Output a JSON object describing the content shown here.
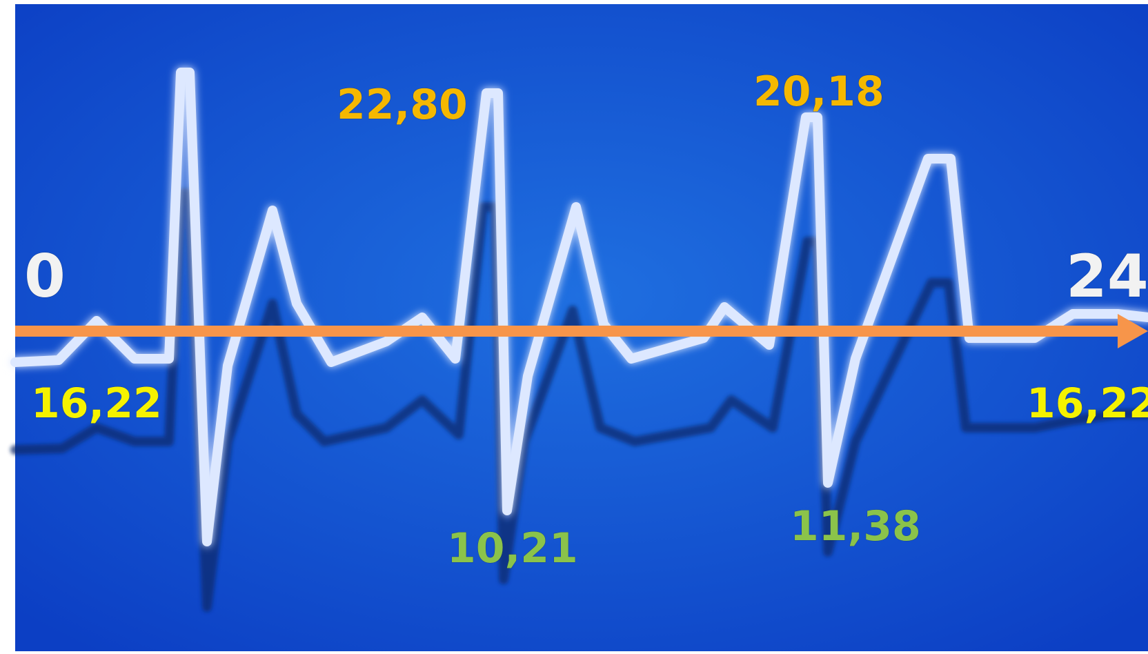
{
  "axis": {
    "start_label": "0",
    "end_label": "24"
  },
  "peaks": [
    {
      "label": "22,80",
      "kind": "high"
    },
    {
      "label": "20,18",
      "kind": "high"
    }
  ],
  "troughs": [
    {
      "label": "10,21",
      "kind": "low"
    },
    {
      "label": "11,38",
      "kind": "low"
    }
  ],
  "baseline_values": {
    "start": "16,22",
    "end": "16,22"
  },
  "colors": {
    "background": "#0c3fc4",
    "background_glow": "#1f6fe0",
    "wave": "#dde8ff",
    "wave_shadow": "#0a2a6e",
    "axis": "#f7954a",
    "axis_label": "#f2f2f2",
    "peak_label": "#f5b800",
    "trough_label": "#8bc34a",
    "baseline_label": "#f5f200"
  }
}
